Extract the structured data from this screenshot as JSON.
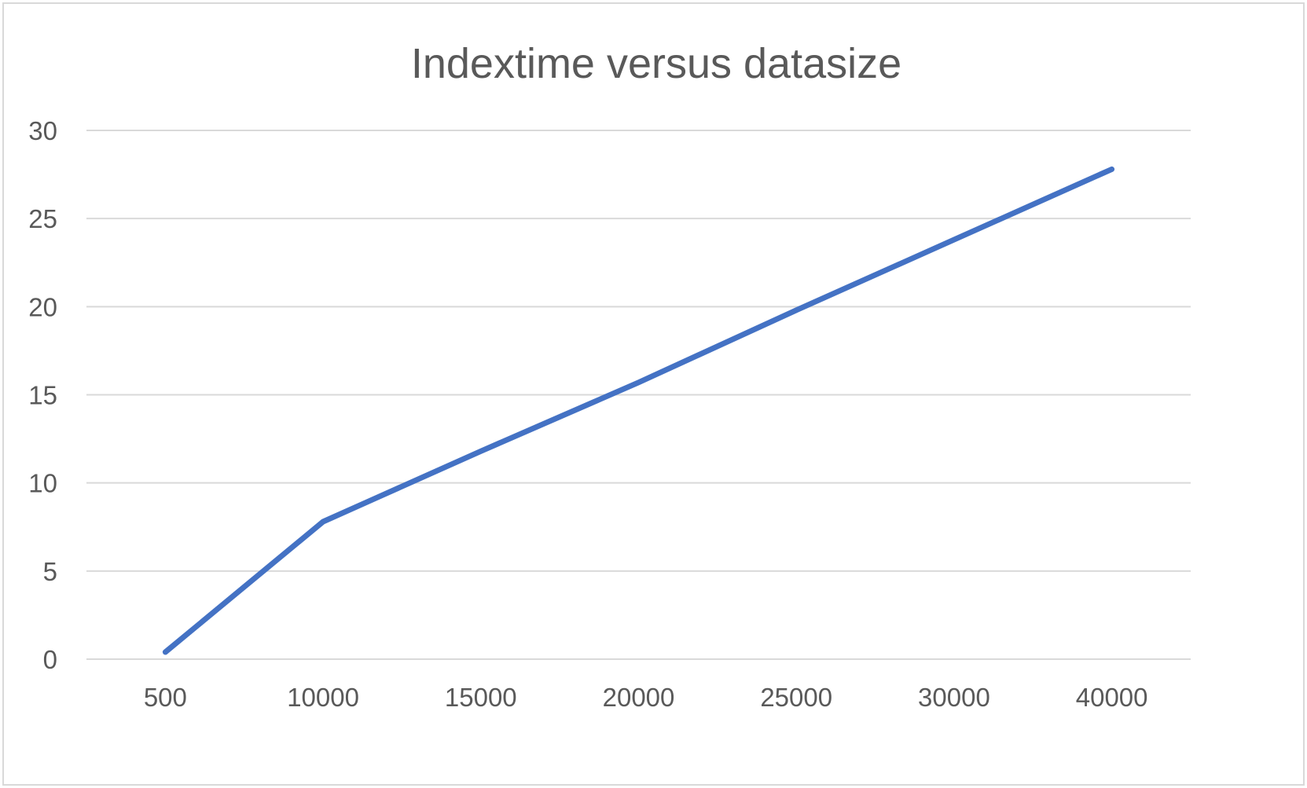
{
  "chart_data": {
    "type": "line",
    "title": "Indextime versus datasize",
    "xlabel": "",
    "ylabel": "",
    "categories": [
      "500",
      "10000",
      "15000",
      "20000",
      "25000",
      "30000",
      "40000"
    ],
    "series": [
      {
        "values": [
          0.4,
          7.8,
          11.8,
          15.7,
          19.8,
          23.8,
          27.8
        ],
        "color": "#4472c4"
      }
    ],
    "ylim": [
      0,
      30
    ],
    "yticks": [
      0,
      5,
      10,
      15,
      20,
      25,
      30
    ],
    "grid": true,
    "legend": "none"
  }
}
